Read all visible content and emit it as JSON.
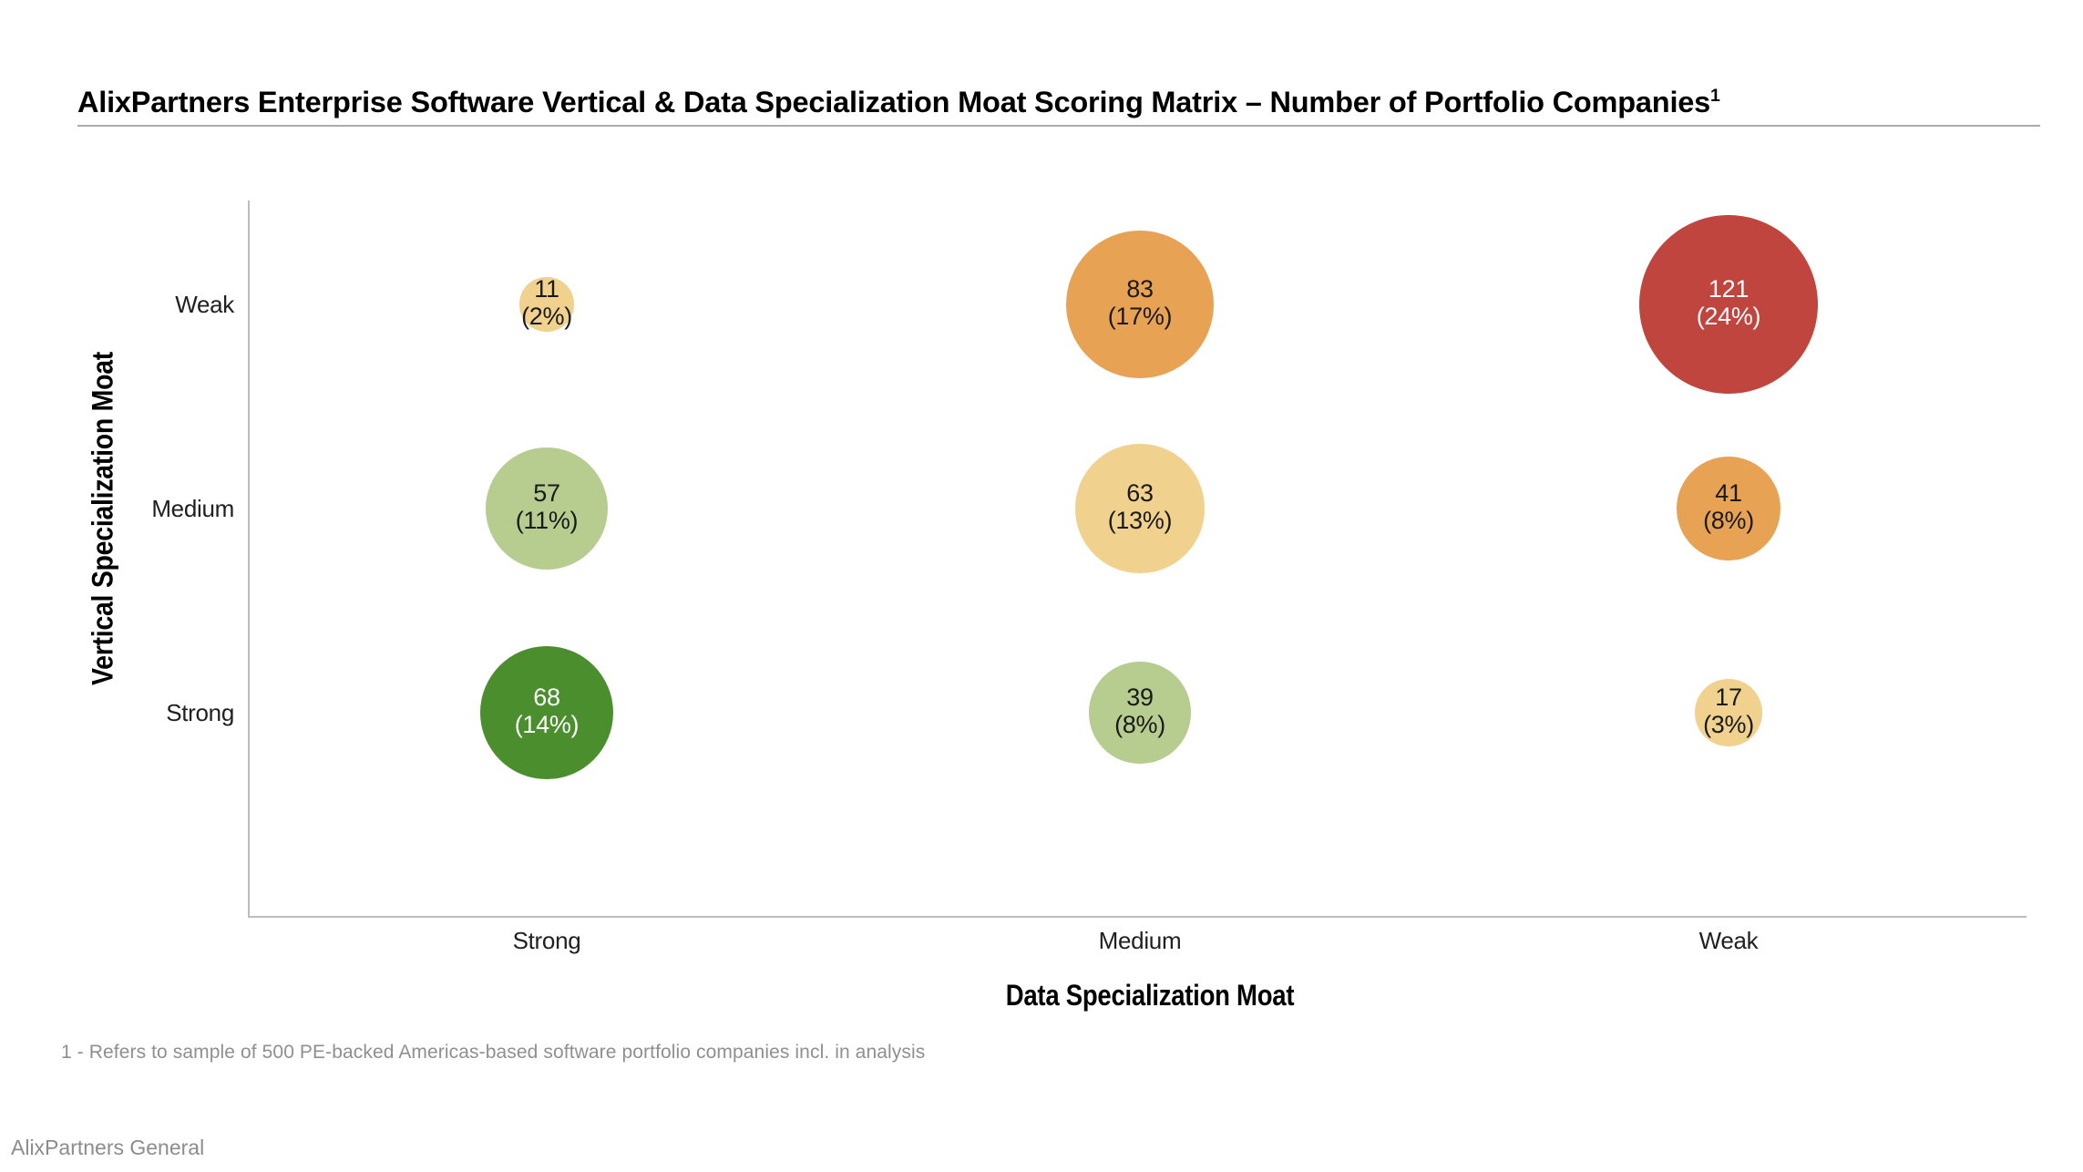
{
  "title": "AlixPartners Enterprise Software Vertical & Data Specialization Moat Scoring Matrix – Number of Portfolio Companies",
  "title_superscript": "1",
  "footnote": "1 - Refers to sample of 500 PE-backed Americas-based software portfolio companies incl. in analysis",
  "watermark": "AlixPartners General",
  "chart_data": {
    "type": "bubble",
    "x_axis": {
      "label": "Data Specialization Moat",
      "categories": [
        "Strong",
        "Medium",
        "Weak"
      ]
    },
    "y_axis": {
      "label": "Vertical Specialization Moat",
      "categories": [
        "Weak",
        "Medium",
        "Strong"
      ]
    },
    "size_encoding": "bubble area proportional to count",
    "bubbles": [
      {
        "y": "Weak",
        "x": "Strong",
        "count": 11,
        "percent_label": "(2%)",
        "color": "#f1d18e",
        "text_color": "#1a1a1a"
      },
      {
        "y": "Weak",
        "x": "Medium",
        "count": 83,
        "percent_label": "(17%)",
        "color": "#e8a254",
        "text_color": "#1a1a1a"
      },
      {
        "y": "Weak",
        "x": "Weak",
        "count": 121,
        "percent_label": "(24%)",
        "color": "#c0453f",
        "text_color": "#ffffff"
      },
      {
        "y": "Medium",
        "x": "Strong",
        "count": 57,
        "percent_label": "(11%)",
        "color": "#b6cd8f",
        "text_color": "#1a1a1a"
      },
      {
        "y": "Medium",
        "x": "Medium",
        "count": 63,
        "percent_label": "(13%)",
        "color": "#f1d18e",
        "text_color": "#1a1a1a"
      },
      {
        "y": "Medium",
        "x": "Weak",
        "count": 41,
        "percent_label": "(8%)",
        "color": "#e8a254",
        "text_color": "#1a1a1a"
      },
      {
        "y": "Strong",
        "x": "Strong",
        "count": 68,
        "percent_label": "(14%)",
        "color": "#4b8e2d",
        "text_color": "#ffffff"
      },
      {
        "y": "Strong",
        "x": "Medium",
        "count": 39,
        "percent_label": "(8%)",
        "color": "#b6cd8f",
        "text_color": "#1a1a1a"
      },
      {
        "y": "Strong",
        "x": "Weak",
        "count": 17,
        "percent_label": "(3%)",
        "color": "#f1d18e",
        "text_color": "#1a1a1a"
      }
    ]
  }
}
